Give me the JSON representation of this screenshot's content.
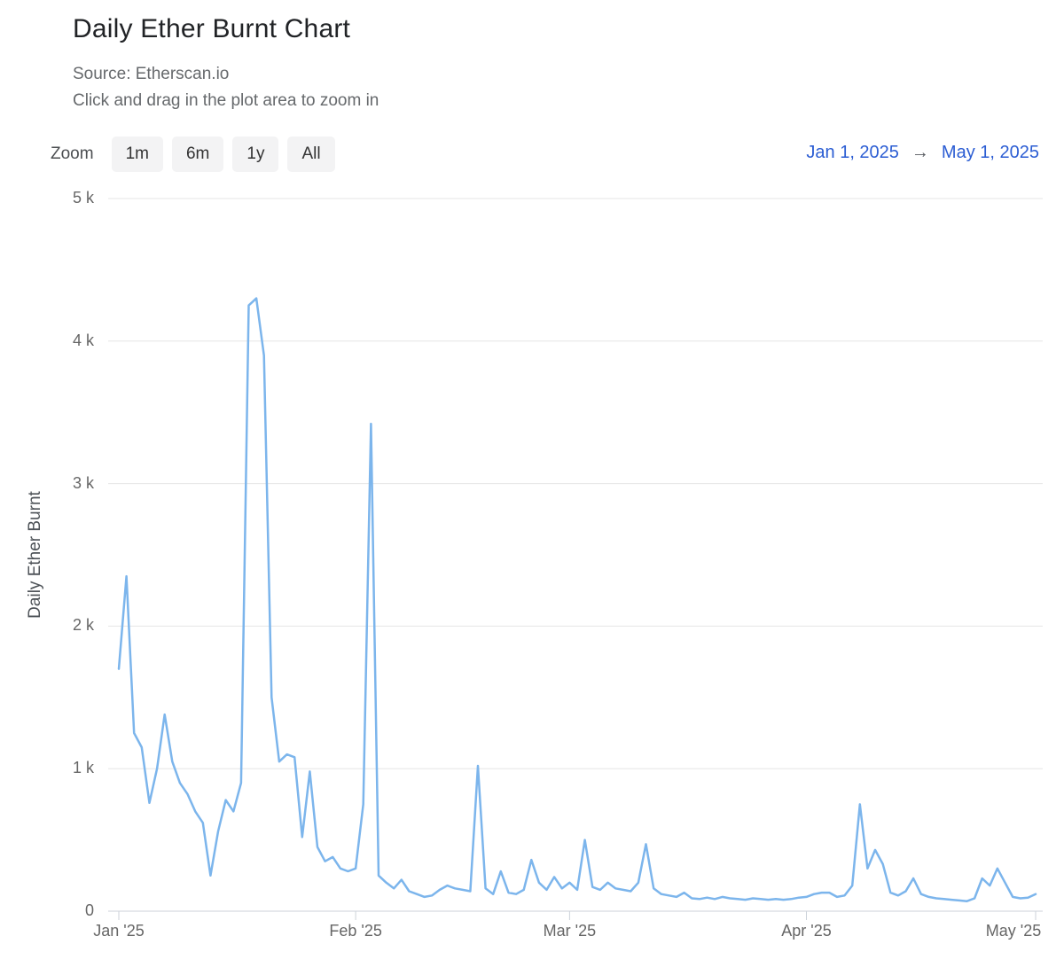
{
  "header": {
    "title": "Daily Ether Burnt Chart",
    "source": "Source: Etherscan.io",
    "hint": "Click and drag in the plot area to zoom in"
  },
  "toolbar": {
    "zoom_label": "Zoom",
    "buttons": [
      "1m",
      "6m",
      "1y",
      "All"
    ],
    "range": {
      "from": "Jan 1, 2025",
      "arrow": "→",
      "to": "May 1, 2025"
    }
  },
  "colors": {
    "line_blue": "#7cb5ec",
    "link_blue": "#2b5dd3",
    "grid": "#e6e6e6",
    "axis": "#ccd2da",
    "tick_text": "#666666",
    "arrow_gray": "#55595e"
  },
  "chart_data": {
    "type": "line",
    "title": "Daily Ether Burnt Chart",
    "xlabel": "",
    "ylabel": "Daily Ether Burnt",
    "x_start_date": "2025-01-01",
    "x_end_date": "2025-05-01",
    "x_interval": "daily",
    "ylim": [
      0,
      5000
    ],
    "grid": true,
    "legend": false,
    "line_color": "#7cb5ec",
    "y_ticks": [
      {
        "label": "0",
        "value": 0
      },
      {
        "label": "1 k",
        "value": 1000
      },
      {
        "label": "2 k",
        "value": 2000
      },
      {
        "label": "3 k",
        "value": 3000
      },
      {
        "label": "4 k",
        "value": 4000
      },
      {
        "label": "5 k",
        "value": 5000
      }
    ],
    "x_ticks": [
      {
        "label": "Jan '25",
        "index": 0
      },
      {
        "label": "Feb '25",
        "index": 31
      },
      {
        "label": "Mar '25",
        "index": 59
      },
      {
        "label": "Apr '25",
        "index": 90
      },
      {
        "label": "May '25",
        "index": 120
      }
    ],
    "values": [
      1700,
      2350,
      1250,
      1150,
      760,
      1000,
      1380,
      1050,
      900,
      820,
      700,
      620,
      250,
      560,
      780,
      700,
      900,
      4250,
      4300,
      3900,
      1500,
      1050,
      1100,
      1080,
      520,
      980,
      450,
      350,
      380,
      300,
      280,
      300,
      750,
      3420,
      250,
      200,
      160,
      220,
      140,
      120,
      100,
      110,
      150,
      180,
      160,
      150,
      140,
      1020,
      160,
      120,
      280,
      130,
      120,
      150,
      360,
      200,
      150,
      240,
      160,
      200,
      150,
      500,
      170,
      150,
      200,
      160,
      150,
      140,
      200,
      470,
      160,
      120,
      110,
      100,
      130,
      90,
      85,
      95,
      85,
      100,
      90,
      85,
      80,
      90,
      85,
      80,
      85,
      80,
      85,
      95,
      100,
      120,
      130,
      130,
      100,
      110,
      180,
      750,
      300,
      430,
      330,
      130,
      110,
      140,
      230,
      120,
      100,
      90,
      85,
      80,
      75,
      70,
      90,
      230,
      180,
      300,
      200,
      100,
      90,
      95,
      120
    ]
  }
}
